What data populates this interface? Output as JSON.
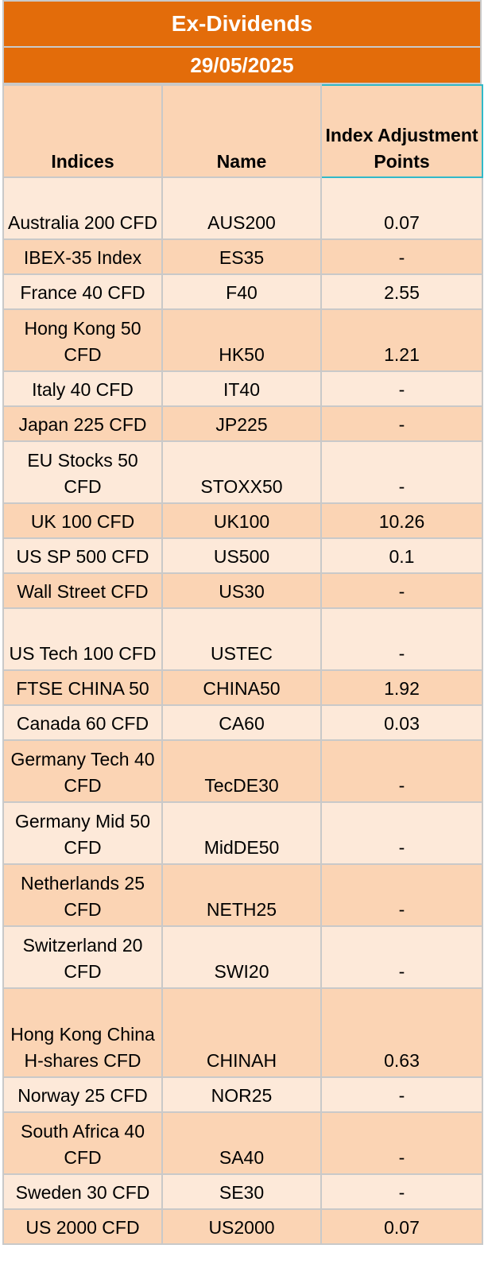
{
  "title": "Ex-Dividends",
  "date": "29/05/2025",
  "columns": [
    "Indices",
    "Name",
    "Index Adjustment Points"
  ],
  "rows": [
    {
      "index": "Australia 200 CFD",
      "name": "AUS200",
      "points": "0.07"
    },
    {
      "index": "IBEX-35 Index",
      "name": "ES35",
      "points": "-"
    },
    {
      "index": "France 40 CFD",
      "name": "F40",
      "points": "2.55"
    },
    {
      "index": "Hong Kong 50 CFD",
      "name": "HK50",
      "points": "1.21"
    },
    {
      "index": "Italy 40 CFD",
      "name": "IT40",
      "points": "-"
    },
    {
      "index": "Japan 225 CFD",
      "name": "JP225",
      "points": "-"
    },
    {
      "index": "EU Stocks 50 CFD",
      "name": "STOXX50",
      "points": "-"
    },
    {
      "index": "UK 100 CFD",
      "name": "UK100",
      "points": "10.26"
    },
    {
      "index": "US SP 500 CFD",
      "name": "US500",
      "points": "0.1"
    },
    {
      "index": "Wall Street CFD",
      "name": "US30",
      "points": "-"
    },
    {
      "index": "US Tech 100 CFD",
      "name": "USTEC",
      "points": "-"
    },
    {
      "index": "FTSE CHINA 50",
      "name": "CHINA50",
      "points": "1.92"
    },
    {
      "index": "Canada 60 CFD",
      "name": "CA60",
      "points": "0.03"
    },
    {
      "index": "Germany Tech 40 CFD",
      "name": "TecDE30",
      "points": "-"
    },
    {
      "index": "Germany Mid 50 CFD",
      "name": "MidDE50",
      "points": "-"
    },
    {
      "index": "Netherlands 25 CFD",
      "name": "NETH25",
      "points": "-"
    },
    {
      "index": "Switzerland 20 CFD",
      "name": "SWI20",
      "points": "-"
    },
    {
      "index": "Hong Kong China H-shares CFD",
      "name": "CHINAH",
      "points": "0.63"
    },
    {
      "index": "Norway 25 CFD",
      "name": "NOR25",
      "points": "-"
    },
    {
      "index": "South Africa 40 CFD",
      "name": "SA40",
      "points": "-"
    },
    {
      "index": "Sweden 30 CFD",
      "name": "SE30",
      "points": "-"
    },
    {
      "index": "US 2000 CFD",
      "name": "US2000",
      "points": "0.07"
    }
  ],
  "colors": {
    "header": "#e36c0a",
    "row_dark": "#fbd4b4",
    "row_light": "#fde9d9",
    "grid": "#c9c9c9",
    "selection": "#31b9c9"
  }
}
